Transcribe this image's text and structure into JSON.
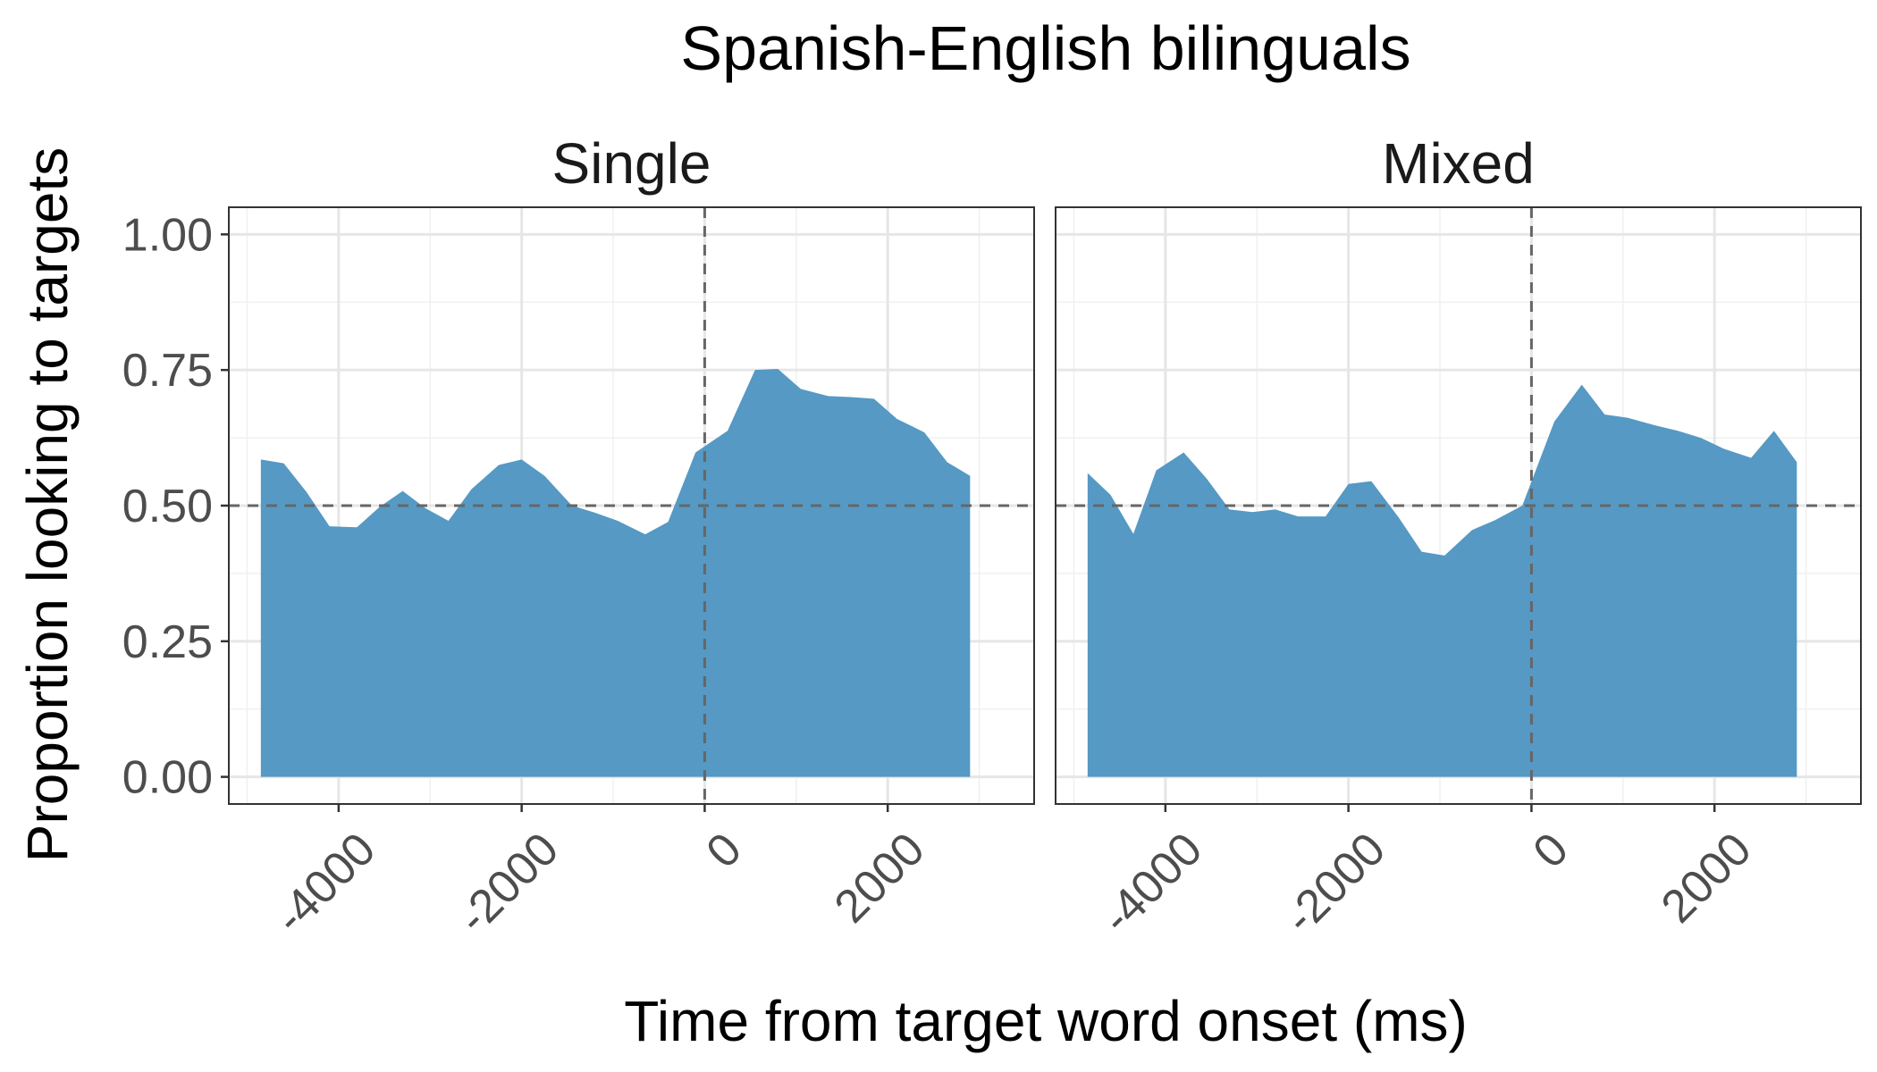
{
  "chart_data": {
    "type": "area",
    "title": "Spanish-English bilinguals",
    "xlabel": "Time from target word onset (ms)",
    "ylabel": "Proportion looking to targets",
    "xlim": [
      -5200,
      3600
    ],
    "ylim": [
      -0.05,
      1.05
    ],
    "x_ticks": [
      -4000,
      -2000,
      0,
      2000
    ],
    "x_tick_labels": [
      "-4000",
      "-2000",
      "0",
      "2000"
    ],
    "y_ticks": [
      0,
      0.25,
      0.5,
      0.75,
      1.0
    ],
    "y_tick_labels": [
      "0.00",
      "0.25",
      "0.50",
      "0.75",
      "1.00"
    ],
    "reference_lines": {
      "x": 0,
      "y": 0.5,
      "style": "dashed"
    },
    "grid": true,
    "fill_color": "#5599C4",
    "panels": [
      {
        "name": "Single",
        "x": [
          -4850,
          -4600,
          -4350,
          -4100,
          -3800,
          -3550,
          -3300,
          -3050,
          -2800,
          -2550,
          -2250,
          -2000,
          -1750,
          -1450,
          -1200,
          -950,
          -650,
          -400,
          -100,
          250,
          550,
          800,
          1050,
          1350,
          1600,
          1850,
          2100,
          2400,
          2650,
          2900
        ],
        "values": [
          0.585,
          0.578,
          0.525,
          0.462,
          0.46,
          0.498,
          0.527,
          0.495,
          0.472,
          0.53,
          0.575,
          0.585,
          0.555,
          0.5,
          0.487,
          0.472,
          0.447,
          0.47,
          0.598,
          0.638,
          0.75,
          0.752,
          0.715,
          0.702,
          0.7,
          0.697,
          0.66,
          0.635,
          0.58,
          0.555
        ]
      },
      {
        "name": "Mixed",
        "x": [
          -4850,
          -4600,
          -4350,
          -4100,
          -3800,
          -3550,
          -3300,
          -3050,
          -2800,
          -2550,
          -2250,
          -2000,
          -1750,
          -1450,
          -1200,
          -950,
          -650,
          -400,
          -100,
          250,
          550,
          800,
          1050,
          1350,
          1600,
          1850,
          2100,
          2400,
          2650,
          2900
        ],
        "values": [
          0.56,
          0.52,
          0.448,
          0.565,
          0.598,
          0.55,
          0.493,
          0.488,
          0.493,
          0.48,
          0.48,
          0.54,
          0.545,
          0.478,
          0.415,
          0.408,
          0.455,
          0.473,
          0.5,
          0.655,
          0.723,
          0.668,
          0.662,
          0.648,
          0.638,
          0.625,
          0.605,
          0.588,
          0.638,
          0.58
        ]
      }
    ]
  }
}
